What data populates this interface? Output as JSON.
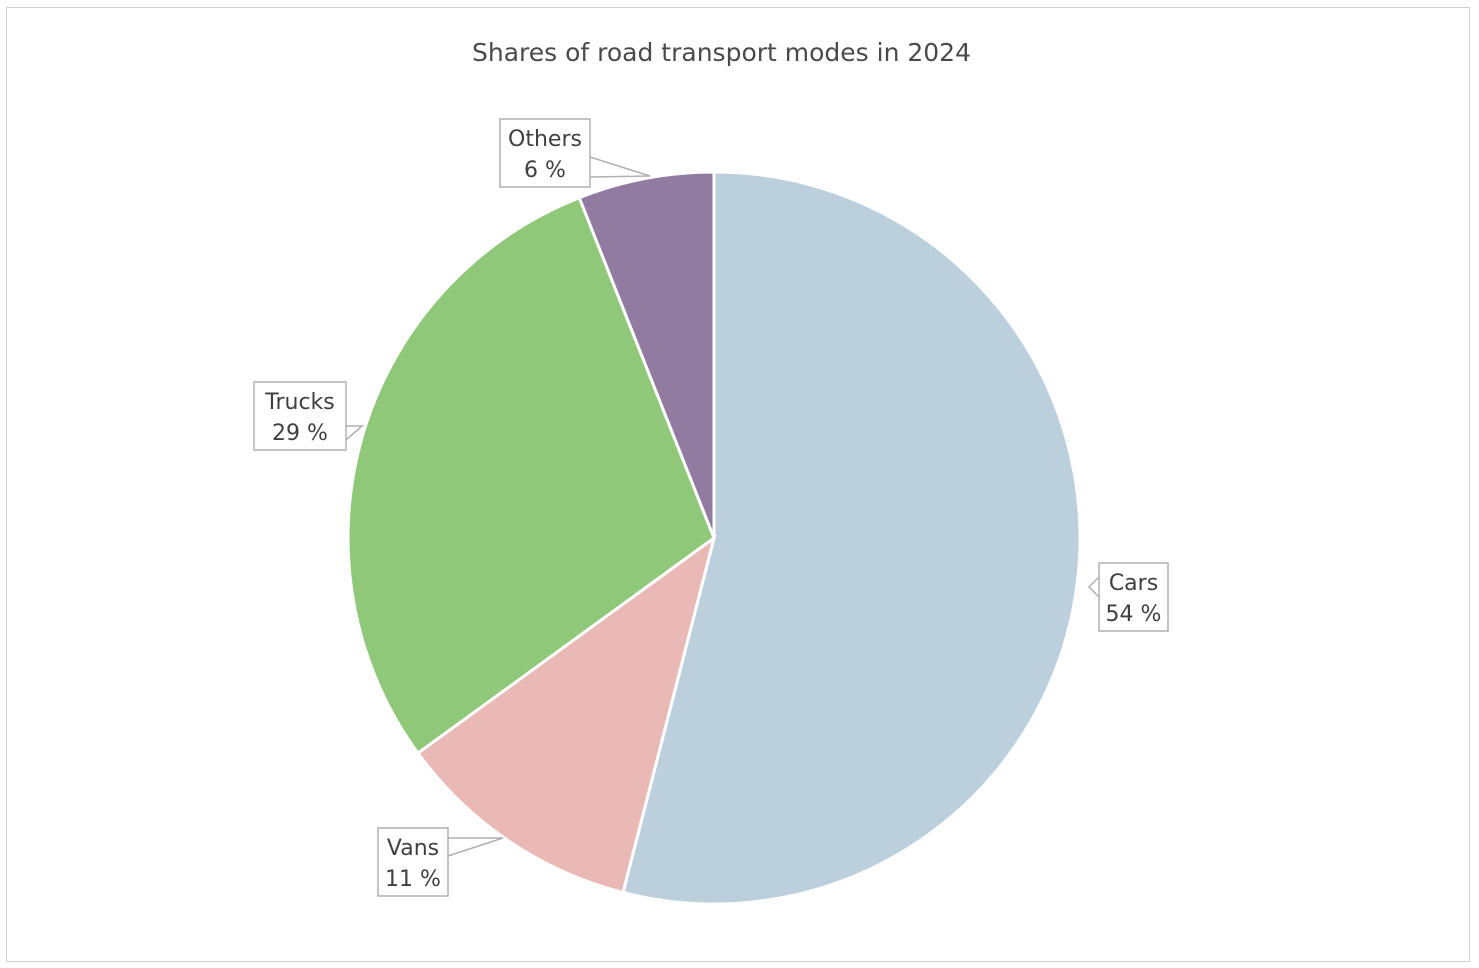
{
  "chart_data": {
    "type": "pie",
    "title": "Shares of road transport modes in 2024",
    "slices": [
      {
        "name": "Cars",
        "value": 54,
        "label": "54 %",
        "color": "#bccfdc"
      },
      {
        "name": "Vans",
        "value": 11,
        "label": "11 %",
        "color": "#ebb9b5"
      },
      {
        "name": "Trucks",
        "value": 29,
        "label": "29 %",
        "color": "#8fc879"
      },
      {
        "name": "Others",
        "value": 6,
        "label": "6 %",
        "color": "#917ba1"
      }
    ],
    "legend": "none"
  }
}
